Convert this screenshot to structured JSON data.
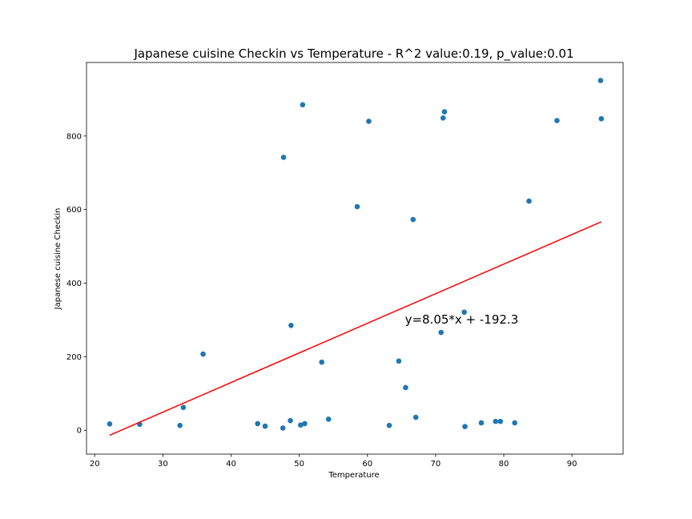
{
  "chart_data": {
    "type": "scatter",
    "title": "Japanese cuisine Checkin vs Temperature - R^2 value:0.19, p_value:0.01",
    "xlabel": "Temperature",
    "ylabel": "Japanese cuisine Checkin",
    "xlim": [
      18.8,
      97.5
    ],
    "ylim": [
      -65,
      1000
    ],
    "xticks": [
      20,
      30,
      40,
      50,
      60,
      70,
      80,
      90
    ],
    "yticks": [
      0,
      200,
      400,
      600,
      800
    ],
    "grid": false,
    "marker_color": "#1f77b4",
    "line_color": "#ff0000",
    "points": [
      {
        "x": 22.2,
        "y": 17
      },
      {
        "x": 26.6,
        "y": 16
      },
      {
        "x": 32.5,
        "y": 13
      },
      {
        "x": 33.0,
        "y": 62
      },
      {
        "x": 35.9,
        "y": 207
      },
      {
        "x": 43.9,
        "y": 18
      },
      {
        "x": 45.0,
        "y": 11
      },
      {
        "x": 47.6,
        "y": 6
      },
      {
        "x": 47.7,
        "y": 742
      },
      {
        "x": 48.7,
        "y": 26
      },
      {
        "x": 48.8,
        "y": 285
      },
      {
        "x": 50.2,
        "y": 14
      },
      {
        "x": 50.5,
        "y": 885
      },
      {
        "x": 50.8,
        "y": 18
      },
      {
        "x": 53.3,
        "y": 185
      },
      {
        "x": 54.3,
        "y": 30
      },
      {
        "x": 58.5,
        "y": 608
      },
      {
        "x": 60.2,
        "y": 840
      },
      {
        "x": 63.2,
        "y": 13
      },
      {
        "x": 64.6,
        "y": 188
      },
      {
        "x": 65.6,
        "y": 116
      },
      {
        "x": 66.7,
        "y": 573
      },
      {
        "x": 67.1,
        "y": 35
      },
      {
        "x": 70.8,
        "y": 266
      },
      {
        "x": 71.1,
        "y": 849
      },
      {
        "x": 71.3,
        "y": 866
      },
      {
        "x": 74.2,
        "y": 321
      },
      {
        "x": 74.3,
        "y": 10
      },
      {
        "x": 76.7,
        "y": 20
      },
      {
        "x": 78.8,
        "y": 24
      },
      {
        "x": 79.5,
        "y": 24
      },
      {
        "x": 81.6,
        "y": 20
      },
      {
        "x": 83.7,
        "y": 623
      },
      {
        "x": 87.8,
        "y": 842
      },
      {
        "x": 94.2,
        "y": 951
      },
      {
        "x": 94.3,
        "y": 847
      }
    ],
    "regression": {
      "slope": 8.05,
      "intercept": -192.3,
      "x_range": [
        22.2,
        94.3
      ],
      "equation_label": "y=8.05*x + -192.3",
      "label_x": 65.5,
      "label_y": 290
    }
  }
}
